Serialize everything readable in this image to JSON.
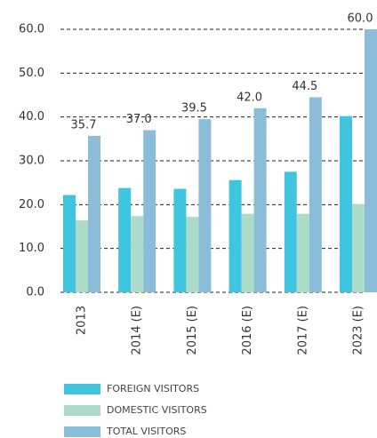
{
  "chart_data": {
    "type": "bar",
    "categories": [
      "2013",
      "2014 (E)",
      "2015 (E)",
      "2016 (E)",
      "2017 (E)",
      "2023 (E)"
    ],
    "series": [
      {
        "name": "FOREIGN VISITORS",
        "color": "#3fc5df",
        "values": [
          22.2,
          23.8,
          23.6,
          25.6,
          27.5,
          40.2
        ]
      },
      {
        "name": "DOMESTIC VISITORS",
        "color": "#acdcc9",
        "values": [
          16.4,
          17.4,
          17.2,
          17.9,
          17.9,
          20.1
        ]
      },
      {
        "name": "TOTAL VISITORS",
        "color": "#8bbdd8",
        "values": [
          35.7,
          37,
          39.5,
          42,
          44.5,
          60
        ],
        "value_labels": [
          "35.7",
          "37.0",
          "39.5",
          "42.0",
          "44.5",
          "60.0"
        ]
      }
    ],
    "ylim": [
      0,
      60
    ],
    "yticks": [
      {
        "value": 0,
        "label": "0.0"
      },
      {
        "value": 10,
        "label": "10.0"
      },
      {
        "value": 20,
        "label": "20.0"
      },
      {
        "value": 30,
        "label": "30.0"
      },
      {
        "value": 40,
        "label": "40.0"
      },
      {
        "value": 50,
        "label": "50.0"
      },
      {
        "value": 60,
        "label": "60.0"
      }
    ],
    "grid": true,
    "legend": "bottom"
  }
}
